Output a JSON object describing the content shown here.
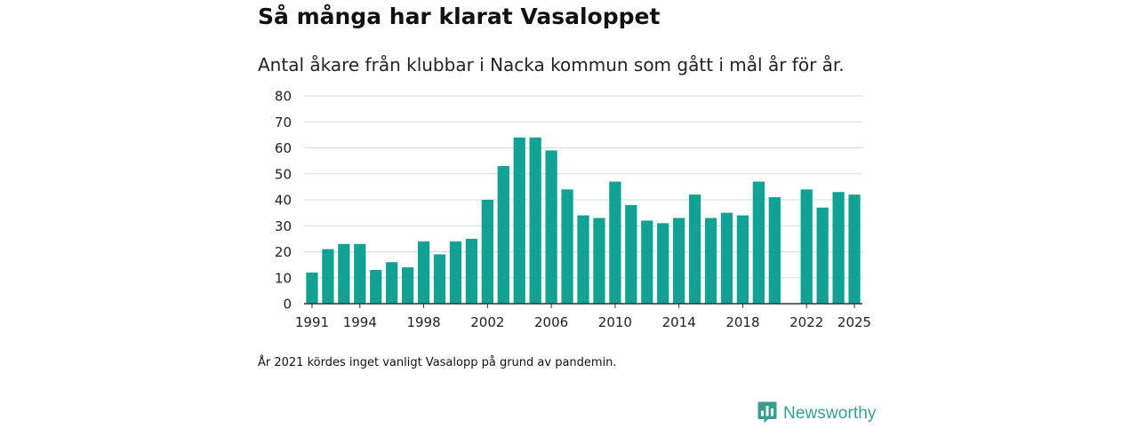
{
  "header": {
    "title": "Så många har klarat Vasaloppet",
    "subtitle": "Antal åkare från klubbar i Nacka kommun som gått i mål år för år."
  },
  "note": "År 2021 kördes inget vanligt Vasalopp på grund av pandemin.",
  "brand": {
    "name": "Newsworthy",
    "icon": "newsworthy-logo-icon",
    "color": "#3a9d8f"
  },
  "chart_data": {
    "type": "bar",
    "title": "Så många har klarat Vasaloppet",
    "subtitle": "Antal åkare från klubbar i Nacka kommun som gått i mål år för år.",
    "xlabel": "",
    "ylabel": "",
    "categories": [
      1991,
      1992,
      1993,
      1994,
      1995,
      1996,
      1997,
      1998,
      1999,
      2000,
      2001,
      2002,
      2003,
      2004,
      2005,
      2006,
      2007,
      2008,
      2009,
      2010,
      2011,
      2012,
      2013,
      2014,
      2015,
      2016,
      2017,
      2018,
      2019,
      2020,
      2021,
      2022,
      2023,
      2024,
      2025
    ],
    "values": [
      12,
      21,
      23,
      23,
      13,
      16,
      14,
      24,
      19,
      24,
      25,
      40,
      53,
      64,
      64,
      59,
      44,
      34,
      33,
      47,
      38,
      32,
      31,
      33,
      42,
      33,
      35,
      34,
      47,
      41,
      null,
      44,
      37,
      43,
      42
    ],
    "ylim": [
      0,
      80
    ],
    "yticks": [
      0,
      10,
      20,
      30,
      40,
      50,
      60,
      70,
      80
    ],
    "xtick_labels": [
      1991,
      1994,
      1998,
      2002,
      2006,
      2010,
      2014,
      2018,
      2022,
      2025
    ],
    "grid": true,
    "bar_color": "#12a294",
    "grid_color": "#d9d9d9",
    "axis_color": "#333333"
  }
}
